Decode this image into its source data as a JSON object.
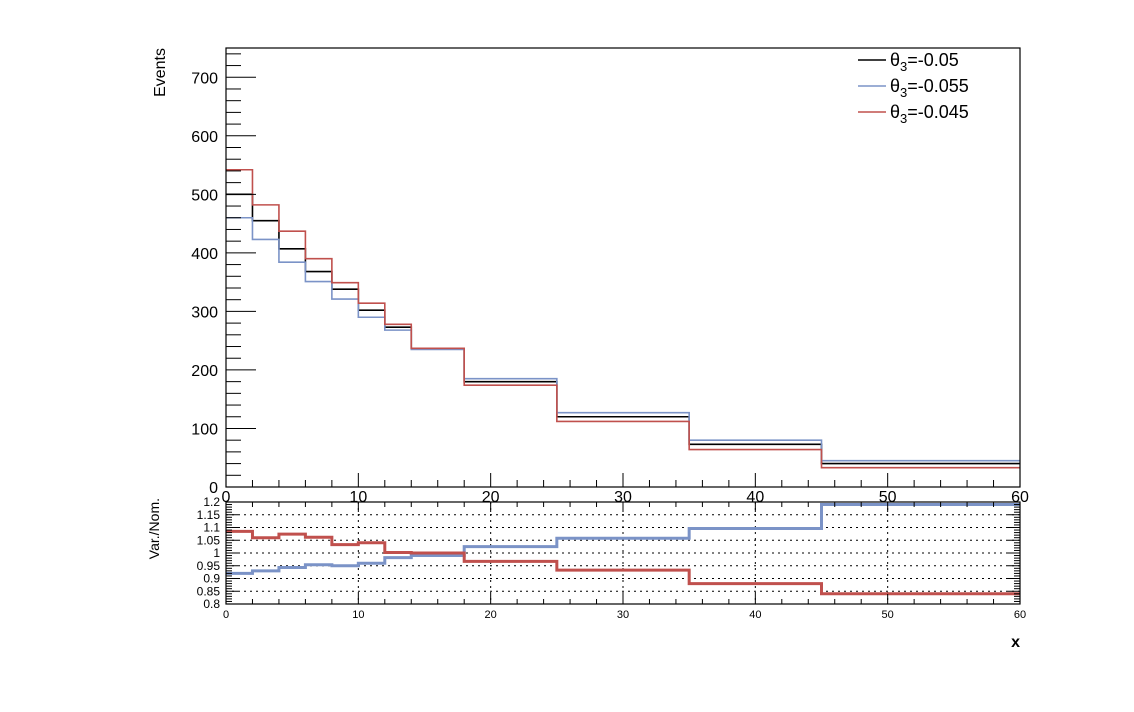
{
  "chart_data": [
    {
      "type": "line",
      "step": true,
      "ylabel": "Events",
      "xlim": [
        0,
        60
      ],
      "ylim": [
        0,
        750
      ],
      "x_ticks": [
        "0",
        "10",
        "20",
        "30",
        "40",
        "50",
        "60"
      ],
      "y_ticks": [
        "0",
        "100",
        "200",
        "300",
        "400",
        "500",
        "600",
        "700"
      ],
      "bin_edges": [
        0,
        2,
        4,
        6,
        8,
        10,
        12,
        14,
        18,
        25,
        35,
        45,
        60
      ],
      "legend_position": "top-right",
      "series": [
        {
          "name": "θ3=-0.05",
          "label_base": "θ",
          "label_sub": "3",
          "label_rest": "=-0.05",
          "color": "#000000",
          "values": [
            500,
            455,
            407,
            368,
            338,
            302,
            273,
            237,
            180,
            120,
            73,
            40
          ]
        },
        {
          "name": "θ3=-0.055",
          "label_base": "θ",
          "label_sub": "3",
          "label_rest": "=-0.055",
          "color": "#7b93c7",
          "values": [
            460,
            423,
            384,
            351,
            321,
            290,
            268,
            235,
            185,
            127,
            80,
            45
          ]
        },
        {
          "name": "θ3=-0.045",
          "label_base": "θ",
          "label_sub": "3",
          "label_rest": "=-0.045",
          "color": "#c0504d",
          "values": [
            542,
            482,
            437,
            390,
            349,
            314,
            278,
            237,
            174,
            112,
            64,
            33
          ]
        }
      ]
    },
    {
      "type": "line",
      "step": true,
      "xlabel": "x",
      "ylabel": "Var./Nom.",
      "xlim": [
        0,
        60
      ],
      "ylim": [
        0.8,
        1.2
      ],
      "grid": true,
      "x_ticks": [
        "0",
        "10",
        "20",
        "30",
        "40",
        "50",
        "60"
      ],
      "y_ticks": [
        "0.8",
        "0.85",
        "0.9",
        "0.95",
        "1",
        "1.05",
        "1.1",
        "1.15",
        "1.2"
      ],
      "bin_edges": [
        0,
        2,
        4,
        6,
        8,
        10,
        12,
        14,
        18,
        25,
        35,
        45,
        60
      ],
      "series": [
        {
          "color": "#7b93c7",
          "values": [
            0.92,
            0.93,
            0.943,
            0.954,
            0.95,
            0.96,
            0.982,
            0.99,
            1.025,
            1.058,
            1.096,
            1.19
          ]
        },
        {
          "color": "#c0504d",
          "values": [
            1.085,
            1.06,
            1.074,
            1.062,
            1.033,
            1.04,
            1.002,
            1.0,
            0.967,
            0.933,
            0.88,
            0.84
          ]
        }
      ]
    }
  ]
}
